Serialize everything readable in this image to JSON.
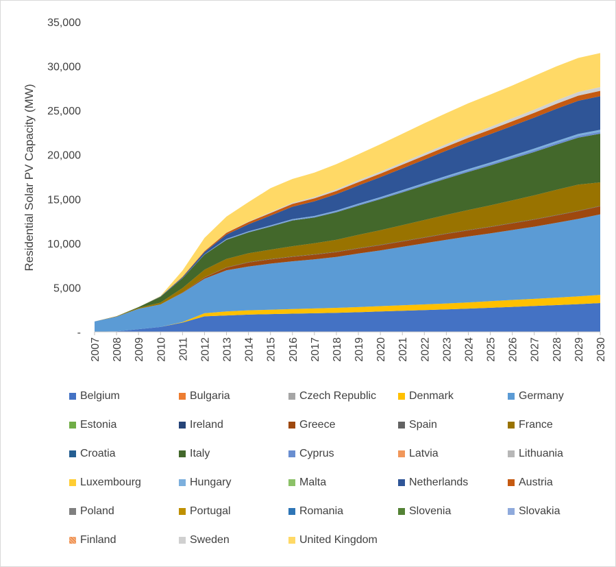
{
  "chart_data": {
    "type": "area",
    "stacked": true,
    "title": "",
    "xlabel": "",
    "ylabel": "Residential Solar PV Capacity (MW)",
    "ylim": [
      0,
      35000
    ],
    "yticks": [
      0,
      5000,
      10000,
      15000,
      20000,
      25000,
      30000,
      35000
    ],
    "ytick_labels": [
      "-",
      "5,000",
      "10,000",
      "15,000",
      "20,000",
      "25,000",
      "30,000",
      "35,000"
    ],
    "grid": false,
    "legend_position": "bottom",
    "x": [
      "2007",
      "2008",
      "2009",
      "2010",
      "2011",
      "2012",
      "2013",
      "2014",
      "2015",
      "2016",
      "2017",
      "2018",
      "2019",
      "2020",
      "2021",
      "2022",
      "2023",
      "2024",
      "2025",
      "2026",
      "2027",
      "2028",
      "2029",
      "2030"
    ],
    "series": [
      {
        "name": "Belgium",
        "color": "#4472c4",
        "values": [
          20,
          60,
          300,
          550,
          1050,
          1750,
          1850,
          1950,
          2000,
          2050,
          2100,
          2150,
          2220,
          2300,
          2380,
          2460,
          2540,
          2620,
          2720,
          2820,
          2920,
          3020,
          3130,
          3250
        ]
      },
      {
        "name": "Bulgaria",
        "color": "#ed7d31",
        "values": [
          0,
          0,
          0,
          0,
          0,
          0,
          0,
          0,
          0,
          0,
          0,
          0,
          0,
          0,
          0,
          0,
          0,
          0,
          0,
          0,
          0,
          0,
          0,
          0
        ]
      },
      {
        "name": "Czech Republic",
        "color": "#a5a5a5",
        "values": [
          0,
          0,
          0,
          0,
          0,
          0,
          0,
          0,
          0,
          0,
          0,
          0,
          0,
          0,
          0,
          0,
          0,
          0,
          0,
          0,
          0,
          0,
          0,
          0
        ]
      },
      {
        "name": "Denmark",
        "color": "#ffc000",
        "values": [
          0,
          0,
          0,
          0,
          50,
          350,
          450,
          480,
          500,
          520,
          540,
          560,
          580,
          600,
          620,
          640,
          660,
          700,
          750,
          780,
          810,
          840,
          880,
          920
        ]
      },
      {
        "name": "Germany",
        "color": "#5b9bd5",
        "values": [
          1150,
          1650,
          2300,
          2550,
          3300,
          3900,
          4650,
          4950,
          5200,
          5400,
          5550,
          5750,
          6050,
          6300,
          6600,
          6900,
          7200,
          7450,
          7650,
          7900,
          8150,
          8450,
          8750,
          9100
        ]
      },
      {
        "name": "Estonia",
        "color": "#70ad47",
        "values": [
          0,
          0,
          0,
          0,
          0,
          0,
          0,
          0,
          0,
          0,
          0,
          0,
          0,
          0,
          0,
          0,
          0,
          0,
          0,
          0,
          0,
          0,
          0,
          0
        ]
      },
      {
        "name": "Ireland",
        "color": "#264478",
        "values": [
          0,
          0,
          0,
          0,
          0,
          0,
          0,
          0,
          0,
          0,
          0,
          0,
          0,
          0,
          0,
          0,
          0,
          0,
          0,
          0,
          0,
          0,
          0,
          0
        ]
      },
      {
        "name": "Greece",
        "color": "#9e480e",
        "values": [
          0,
          0,
          0,
          0,
          50,
          150,
          300,
          450,
          480,
          500,
          520,
          540,
          560,
          580,
          600,
          630,
          660,
          690,
          720,
          750,
          790,
          830,
          870,
          910
        ]
      },
      {
        "name": "Spain",
        "color": "#636363",
        "values": [
          0,
          0,
          0,
          0,
          0,
          20,
          40,
          50,
          50,
          50,
          50,
          50,
          50,
          50,
          50,
          50,
          50,
          50,
          50,
          50,
          50,
          50,
          50,
          50
        ]
      },
      {
        "name": "France",
        "color": "#997300",
        "values": [
          0,
          50,
          100,
          200,
          500,
          850,
          950,
          1000,
          1050,
          1150,
          1250,
          1350,
          1500,
          1650,
          1800,
          1950,
          2100,
          2250,
          2400,
          2550,
          2700,
          2850,
          2950,
          2650
        ]
      },
      {
        "name": "Croatia",
        "color": "#255e91",
        "values": [
          0,
          0,
          0,
          0,
          0,
          0,
          0,
          0,
          0,
          0,
          0,
          0,
          0,
          0,
          0,
          0,
          0,
          0,
          0,
          0,
          0,
          0,
          0,
          0
        ]
      },
      {
        "name": "Italy",
        "color": "#43682b",
        "values": [
          0,
          0,
          100,
          650,
          1100,
          1700,
          2150,
          2350,
          2600,
          2900,
          2900,
          3100,
          3300,
          3500,
          3700,
          3900,
          4100,
          4300,
          4500,
          4700,
          4900,
          5100,
          5300,
          5500
        ]
      },
      {
        "name": "Cyprus",
        "color": "#698ed0",
        "values": [
          0,
          0,
          0,
          0,
          20,
          40,
          50,
          60,
          70,
          80,
          90,
          100,
          110,
          120,
          130,
          140,
          150,
          160,
          170,
          180,
          190,
          200,
          210,
          220
        ]
      },
      {
        "name": "Latvia",
        "color": "#f1975a",
        "values": [
          0,
          0,
          0,
          0,
          0,
          0,
          0,
          0,
          0,
          0,
          0,
          0,
          0,
          0,
          0,
          0,
          0,
          0,
          0,
          0,
          0,
          0,
          0,
          0
        ]
      },
      {
        "name": "Lithuania",
        "color": "#b7b7b7",
        "values": [
          0,
          0,
          0,
          0,
          0,
          0,
          0,
          0,
          0,
          0,
          0,
          0,
          0,
          0,
          0,
          0,
          0,
          0,
          0,
          0,
          0,
          0,
          0,
          0
        ]
      },
      {
        "name": "Luxembourg",
        "color": "#ffcd33",
        "values": [
          0,
          0,
          0,
          0,
          0,
          0,
          0,
          0,
          0,
          0,
          0,
          0,
          0,
          0,
          0,
          0,
          0,
          0,
          0,
          0,
          0,
          0,
          0,
          0
        ]
      },
      {
        "name": "Hungary",
        "color": "#7cafdd",
        "values": [
          0,
          0,
          0,
          0,
          0,
          0,
          50,
          60,
          70,
          80,
          90,
          100,
          110,
          120,
          130,
          140,
          150,
          160,
          170,
          180,
          190,
          200,
          210,
          220
        ]
      },
      {
        "name": "Malta",
        "color": "#8cc168",
        "values": [
          0,
          0,
          0,
          0,
          0,
          0,
          0,
          0,
          0,
          0,
          0,
          0,
          0,
          0,
          0,
          0,
          0,
          0,
          0,
          0,
          0,
          0,
          0,
          0
        ]
      },
      {
        "name": "Netherlands",
        "color": "#2f5597",
        "values": [
          0,
          0,
          0,
          50,
          100,
          250,
          500,
          800,
          1100,
          1400,
          1650,
          1850,
          2050,
          2250,
          2450,
          2650,
          2850,
          3050,
          3200,
          3350,
          3500,
          3650,
          3750,
          3800
        ]
      },
      {
        "name": "Austria",
        "color": "#c55a11",
        "values": [
          0,
          0,
          0,
          0,
          50,
          100,
          200,
          250,
          300,
          320,
          340,
          360,
          380,
          400,
          420,
          440,
          460,
          480,
          500,
          520,
          540,
          560,
          580,
          600
        ]
      },
      {
        "name": "Poland",
        "color": "#7f7f7f",
        "values": [
          0,
          0,
          0,
          0,
          0,
          0,
          0,
          0,
          0,
          0,
          0,
          0,
          0,
          0,
          0,
          0,
          0,
          0,
          0,
          0,
          0,
          0,
          0,
          0
        ]
      },
      {
        "name": "Portugal",
        "color": "#bf9000",
        "values": [
          0,
          0,
          0,
          0,
          0,
          0,
          0,
          0,
          0,
          0,
          0,
          0,
          0,
          0,
          0,
          0,
          0,
          0,
          0,
          0,
          0,
          0,
          0,
          0
        ]
      },
      {
        "name": "Romania",
        "color": "#2e75b6",
        "values": [
          0,
          0,
          0,
          0,
          0,
          0,
          0,
          0,
          0,
          0,
          0,
          0,
          0,
          0,
          0,
          0,
          0,
          0,
          0,
          0,
          0,
          0,
          0,
          0
        ]
      },
      {
        "name": "Slovenia",
        "color": "#548235",
        "values": [
          0,
          0,
          0,
          0,
          0,
          0,
          0,
          0,
          0,
          0,
          0,
          0,
          0,
          0,
          0,
          0,
          0,
          0,
          0,
          0,
          0,
          0,
          0,
          0
        ]
      },
      {
        "name": "Slovakia",
        "color": "#8faadc",
        "values": [
          0,
          0,
          0,
          0,
          0,
          0,
          0,
          0,
          0,
          0,
          0,
          0,
          0,
          0,
          0,
          0,
          0,
          0,
          0,
          0,
          0,
          0,
          0,
          0
        ]
      },
      {
        "name": "Finland",
        "color": "#f4b183",
        "pattern": true,
        "values": [
          0,
          0,
          0,
          0,
          0,
          0,
          0,
          0,
          0,
          0,
          0,
          0,
          0,
          0,
          0,
          0,
          0,
          0,
          0,
          0,
          0,
          0,
          0,
          0
        ]
      },
      {
        "name": "Sweden",
        "color": "#d0d0d0",
        "values": [
          0,
          0,
          0,
          0,
          0,
          0,
          30,
          50,
          100,
          120,
          150,
          180,
          200,
          220,
          240,
          260,
          280,
          300,
          320,
          340,
          360,
          380,
          400,
          420
        ]
      },
      {
        "name": "United Kingdom",
        "color": "#ffd966",
        "values": [
          0,
          0,
          0,
          50,
          700,
          1500,
          1800,
          2200,
          2700,
          2700,
          2750,
          2850,
          2950,
          3100,
          3250,
          3400,
          3500,
          3600,
          3650,
          3700,
          3800,
          3850,
          3850,
          3850
        ]
      }
    ]
  }
}
